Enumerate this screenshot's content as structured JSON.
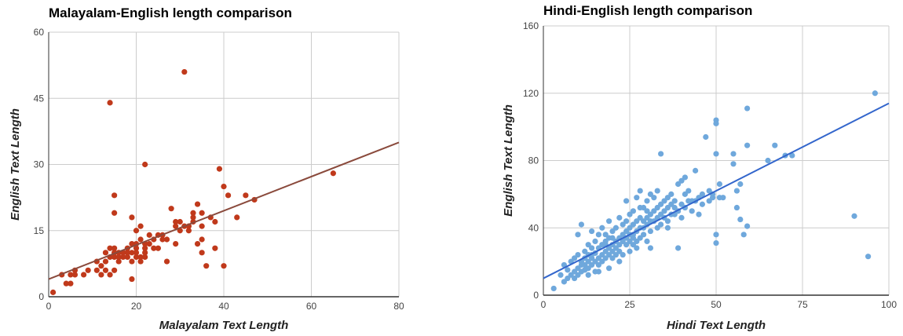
{
  "chart_data": [
    {
      "type": "scatter",
      "title": "Malayalam-English length comparison",
      "xlabel": "Malayalam Text Length",
      "ylabel": "English Text Length",
      "xlim": [
        0,
        80
      ],
      "ylim": [
        0,
        60
      ],
      "xticks": [
        "0",
        "20",
        "40",
        "60",
        "80"
      ],
      "yticks": [
        "0",
        "15",
        "30",
        "45",
        "60"
      ],
      "grid": true,
      "point_color": "#c0391b",
      "trendline_color": "#8a4a3c",
      "trendline": {
        "x": [
          0,
          80
        ],
        "y": [
          4,
          35
        ]
      },
      "points": [
        [
          1,
          1
        ],
        [
          3,
          5
        ],
        [
          4,
          3
        ],
        [
          5,
          3
        ],
        [
          5,
          5
        ],
        [
          6,
          6
        ],
        [
          6,
          5
        ],
        [
          8,
          5
        ],
        [
          9,
          6
        ],
        [
          11,
          6
        ],
        [
          11,
          8
        ],
        [
          12,
          7
        ],
        [
          12,
          5
        ],
        [
          13,
          8
        ],
        [
          13,
          6
        ],
        [
          13,
          10
        ],
        [
          14,
          5
        ],
        [
          14,
          9
        ],
        [
          14,
          11
        ],
        [
          14,
          44
        ],
        [
          15,
          6
        ],
        [
          15,
          9
        ],
        [
          15,
          10
        ],
        [
          15,
          11
        ],
        [
          15,
          19
        ],
        [
          15,
          23
        ],
        [
          16,
          8
        ],
        [
          16,
          10
        ],
        [
          17,
          9
        ],
        [
          17,
          10
        ],
        [
          18,
          9
        ],
        [
          18,
          10
        ],
        [
          19,
          4
        ],
        [
          19,
          8
        ],
        [
          19,
          18
        ],
        [
          19,
          12
        ],
        [
          20,
          9
        ],
        [
          20,
          15
        ],
        [
          20,
          11
        ],
        [
          20,
          10
        ],
        [
          21,
          8
        ],
        [
          21,
          9
        ],
        [
          21,
          13
        ],
        [
          21,
          16
        ],
        [
          22,
          10
        ],
        [
          22,
          11
        ],
        [
          22,
          9
        ],
        [
          22,
          30
        ],
        [
          22,
          12
        ],
        [
          23,
          12
        ],
        [
          23,
          14
        ],
        [
          24,
          13
        ],
        [
          25,
          11
        ],
        [
          25,
          14
        ],
        [
          26,
          14
        ],
        [
          27,
          13
        ],
        [
          27,
          8
        ],
        [
          28,
          20
        ],
        [
          29,
          12
        ],
        [
          29,
          16
        ],
        [
          29,
          17
        ],
        [
          30,
          15
        ],
        [
          31,
          16
        ],
        [
          31,
          51
        ],
        [
          32,
          15
        ],
        [
          32,
          16
        ],
        [
          33,
          17
        ],
        [
          33,
          18
        ],
        [
          33,
          19
        ],
        [
          34,
          12
        ],
        [
          34,
          21
        ],
        [
          35,
          10
        ],
        [
          35,
          19
        ],
        [
          35,
          16
        ],
        [
          36,
          7
        ],
        [
          37,
          18
        ],
        [
          38,
          17
        ],
        [
          38,
          11
        ],
        [
          39,
          29
        ],
        [
          40,
          7
        ],
        [
          40,
          25
        ],
        [
          41,
          23
        ],
        [
          43,
          18
        ],
        [
          45,
          23
        ],
        [
          47,
          22
        ],
        [
          65,
          28
        ],
        [
          35,
          13
        ],
        [
          17,
          10
        ],
        [
          18,
          11
        ],
        [
          20,
          12
        ],
        [
          24,
          11
        ],
        [
          30,
          17
        ],
        [
          26,
          13
        ],
        [
          19,
          10
        ],
        [
          16,
          9
        ]
      ]
    },
    {
      "type": "scatter",
      "title": "Hindi-English length comparison",
      "xlabel": "Hindi Text Length",
      "ylabel": "English Text Length",
      "xlim": [
        0,
        100
      ],
      "ylim": [
        0,
        160
      ],
      "xticks": [
        "0",
        "25",
        "50",
        "75",
        "100"
      ],
      "yticks": [
        "0",
        "40",
        "80",
        "120",
        "160"
      ],
      "grid": true,
      "point_color": "#6fa8dc",
      "trendline_color": "#3366cc",
      "trendline": {
        "x": [
          0,
          100
        ],
        "y": [
          10,
          114
        ]
      },
      "points": [
        [
          3,
          4
        ],
        [
          5,
          12
        ],
        [
          6,
          8
        ],
        [
          6,
          18
        ],
        [
          7,
          10
        ],
        [
          7,
          15
        ],
        [
          8,
          12
        ],
        [
          8,
          20
        ],
        [
          9,
          14
        ],
        [
          9,
          22
        ],
        [
          9,
          10
        ],
        [
          10,
          16
        ],
        [
          10,
          24
        ],
        [
          10,
          36
        ],
        [
          10,
          12
        ],
        [
          11,
          18
        ],
        [
          11,
          20
        ],
        [
          11,
          42
        ],
        [
          11,
          14
        ],
        [
          12,
          22
        ],
        [
          12,
          15
        ],
        [
          12,
          26
        ],
        [
          12,
          18
        ],
        [
          13,
          20
        ],
        [
          13,
          30
        ],
        [
          13,
          24
        ],
        [
          13,
          16
        ],
        [
          14,
          22
        ],
        [
          14,
          28
        ],
        [
          14,
          38
        ],
        [
          14,
          18
        ],
        [
          15,
          25
        ],
        [
          15,
          20
        ],
        [
          15,
          32
        ],
        [
          15,
          14
        ],
        [
          16,
          28
        ],
        [
          16,
          22
        ],
        [
          16,
          36
        ],
        [
          16,
          18
        ],
        [
          17,
          24
        ],
        [
          17,
          30
        ],
        [
          17,
          20
        ],
        [
          17,
          40
        ],
        [
          18,
          26
        ],
        [
          18,
          32
        ],
        [
          18,
          22
        ],
        [
          18,
          36
        ],
        [
          19,
          28
        ],
        [
          19,
          34
        ],
        [
          19,
          24
        ],
        [
          19,
          44
        ],
        [
          20,
          30
        ],
        [
          20,
          26
        ],
        [
          20,
          38
        ],
        [
          20,
          22
        ],
        [
          21,
          32
        ],
        [
          21,
          28
        ],
        [
          21,
          40
        ],
        [
          22,
          34
        ],
        [
          22,
          30
        ],
        [
          22,
          46
        ],
        [
          22,
          26
        ],
        [
          23,
          36
        ],
        [
          23,
          32
        ],
        [
          23,
          42
        ],
        [
          23,
          24
        ],
        [
          24,
          38
        ],
        [
          24,
          34
        ],
        [
          24,
          56
        ],
        [
          24,
          30
        ],
        [
          25,
          40
        ],
        [
          25,
          36
        ],
        [
          25,
          48
        ],
        [
          25,
          26
        ],
        [
          26,
          42
        ],
        [
          26,
          36
        ],
        [
          26,
          50
        ],
        [
          26,
          30
        ],
        [
          27,
          44
        ],
        [
          27,
          38
        ],
        [
          27,
          58
        ],
        [
          27,
          32
        ],
        [
          28,
          46
        ],
        [
          28,
          40
        ],
        [
          28,
          62
        ],
        [
          28,
          34
        ],
        [
          29,
          44
        ],
        [
          29,
          40
        ],
        [
          29,
          52
        ],
        [
          29,
          36
        ],
        [
          30,
          46
        ],
        [
          30,
          42
        ],
        [
          30,
          56
        ],
        [
          30,
          32
        ],
        [
          31,
          48
        ],
        [
          31,
          44
        ],
        [
          31,
          60
        ],
        [
          31,
          28
        ],
        [
          32,
          44
        ],
        [
          32,
          50
        ],
        [
          32,
          58
        ],
        [
          33,
          46
        ],
        [
          33,
          52
        ],
        [
          33,
          62
        ],
        [
          34,
          48
        ],
        [
          34,
          54
        ],
        [
          34,
          84
        ],
        [
          35,
          50
        ],
        [
          35,
          56
        ],
        [
          35,
          46
        ],
        [
          36,
          52
        ],
        [
          36,
          44
        ],
        [
          36,
          58
        ],
        [
          37,
          54
        ],
        [
          37,
          48
        ],
        [
          37,
          60
        ],
        [
          38,
          52
        ],
        [
          38,
          56
        ],
        [
          38,
          48
        ],
        [
          39,
          50
        ],
        [
          39,
          66
        ],
        [
          39,
          28
        ],
        [
          40,
          54
        ],
        [
          40,
          46
        ],
        [
          40,
          68
        ],
        [
          41,
          52
        ],
        [
          41,
          60
        ],
        [
          41,
          70
        ],
        [
          42,
          56
        ],
        [
          42,
          62
        ],
        [
          43,
          50
        ],
        [
          43,
          56
        ],
        [
          44,
          56
        ],
        [
          44,
          74
        ],
        [
          45,
          58
        ],
        [
          45,
          48
        ],
        [
          46,
          60
        ],
        [
          46,
          54
        ],
        [
          47,
          94
        ],
        [
          48,
          62
        ],
        [
          48,
          56
        ],
        [
          49,
          58
        ],
        [
          49,
          60
        ],
        [
          50,
          104
        ],
        [
          50,
          102
        ],
        [
          50,
          84
        ],
        [
          50,
          36
        ],
        [
          50,
          31
        ],
        [
          51,
          58
        ],
        [
          51,
          66
        ],
        [
          52,
          58
        ],
        [
          55,
          84
        ],
        [
          55,
          78
        ],
        [
          56,
          52
        ],
        [
          56,
          62
        ],
        [
          57,
          66
        ],
        [
          57,
          45
        ],
        [
          58,
          36
        ],
        [
          59,
          89
        ],
        [
          59,
          111
        ],
        [
          59,
          41
        ],
        [
          65,
          80
        ],
        [
          67,
          89
        ],
        [
          70,
          83
        ],
        [
          72,
          83
        ],
        [
          90,
          47
        ],
        [
          94,
          23
        ],
        [
          96,
          120
        ],
        [
          14,
          24
        ],
        [
          18,
          30
        ],
        [
          21,
          24
        ],
        [
          24,
          44
        ],
        [
          27,
          28
        ],
        [
          30,
          50
        ],
        [
          33,
          40
        ],
        [
          36,
          40
        ],
        [
          16,
          14
        ],
        [
          13,
          12
        ],
        [
          19,
          16
        ],
        [
          22,
          20
        ],
        [
          25,
          32
        ],
        [
          28,
          52
        ],
        [
          31,
          38
        ],
        [
          34,
          42
        ],
        [
          26,
          34
        ],
        [
          20,
          34
        ]
      ]
    }
  ]
}
